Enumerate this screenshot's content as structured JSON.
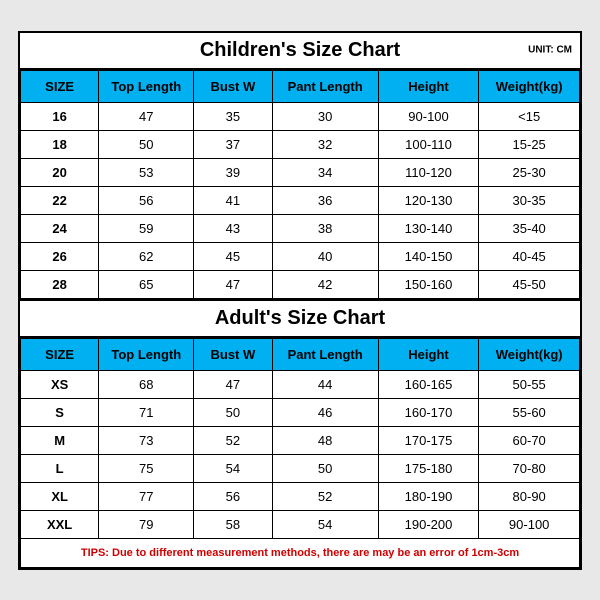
{
  "colors": {
    "header_bg": "#00b0f0",
    "border": "#000000",
    "tips_text": "#d00000",
    "page_bg": "#e8e8e8",
    "table_bg": "#ffffff"
  },
  "children": {
    "title": "Children's Size Chart",
    "unit": "UNIT: CM",
    "columns": [
      "SIZE",
      "Top Length",
      "Bust W",
      "Pant Length",
      "Height",
      "Weight(kg)"
    ],
    "rows": [
      [
        "16",
        "47",
        "35",
        "30",
        "90-100",
        "<15"
      ],
      [
        "18",
        "50",
        "37",
        "32",
        "100-110",
        "15-25"
      ],
      [
        "20",
        "53",
        "39",
        "34",
        "110-120",
        "25-30"
      ],
      [
        "22",
        "56",
        "41",
        "36",
        "120-130",
        "30-35"
      ],
      [
        "24",
        "59",
        "43",
        "38",
        "130-140",
        "35-40"
      ],
      [
        "26",
        "62",
        "45",
        "40",
        "140-150",
        "40-45"
      ],
      [
        "28",
        "65",
        "47",
        "42",
        "150-160",
        "45-50"
      ]
    ]
  },
  "adult": {
    "title": "Adult's Size Chart",
    "columns": [
      "SIZE",
      "Top Length",
      "Bust W",
      "Pant Length",
      "Height",
      "Weight(kg)"
    ],
    "rows": [
      [
        "XS",
        "68",
        "47",
        "44",
        "160-165",
        "50-55"
      ],
      [
        "S",
        "71",
        "50",
        "46",
        "160-170",
        "55-60"
      ],
      [
        "M",
        "73",
        "52",
        "48",
        "170-175",
        "60-70"
      ],
      [
        "L",
        "75",
        "54",
        "50",
        "175-180",
        "70-80"
      ],
      [
        "XL",
        "77",
        "56",
        "52",
        "180-190",
        "80-90"
      ],
      [
        "XXL",
        "79",
        "58",
        "54",
        "190-200",
        "90-100"
      ]
    ]
  },
  "tips": "TIPS: Due to different measurement methods, there are may be an error of 1cm-3cm"
}
